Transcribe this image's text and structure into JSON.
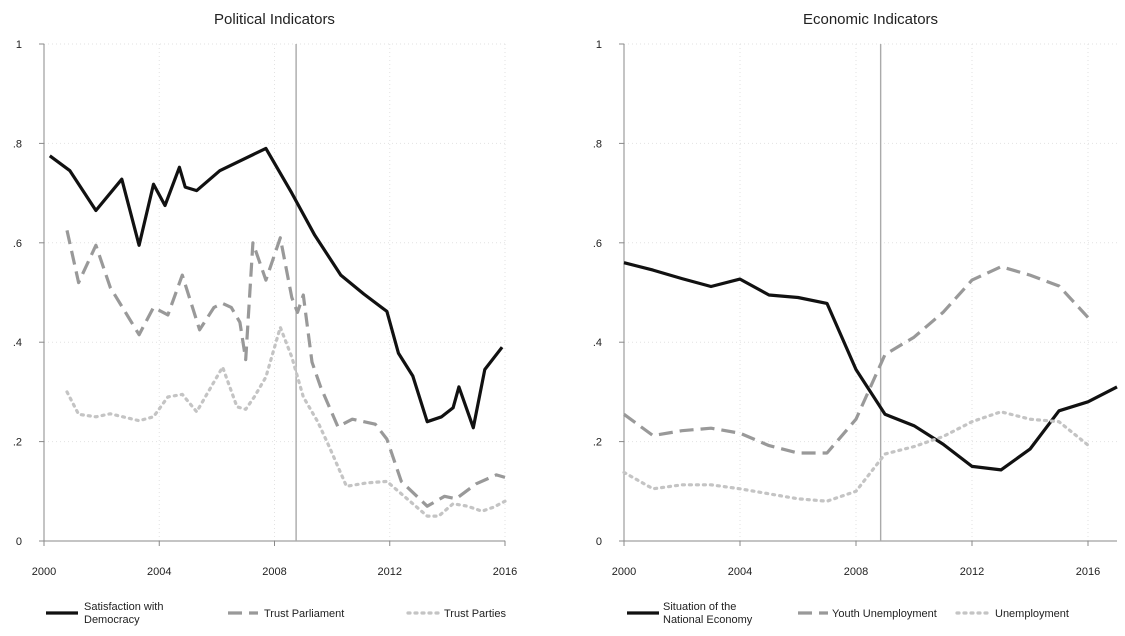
{
  "chart_data": [
    {
      "type": "line",
      "title": "Political Indicators",
      "xlabel": "",
      "ylabel": "",
      "xlim": [
        2000,
        2016
      ],
      "ylim": [
        0,
        1
      ],
      "xticks": [
        2000,
        2004,
        2008,
        2012,
        2016
      ],
      "xtick_labels": [
        "2000",
        "2004",
        "2008",
        "2012",
        "2016"
      ],
      "yticks": [
        0,
        0.2,
        0.4,
        0.6,
        0.8,
        1
      ],
      "ytick_labels": [
        "0",
        ".2",
        ".4",
        ".6",
        ".8",
        "1"
      ],
      "grid": true,
      "vline": 2008.75,
      "legend": "bottom",
      "series": [
        {
          "name": "Satisfaction with Democracy",
          "style": "solid",
          "color": "#111111",
          "points": [
            [
              2000.2,
              0.775
            ],
            [
              2000.9,
              0.745
            ],
            [
              2001.8,
              0.665
            ],
            [
              2002.7,
              0.728
            ],
            [
              2003.3,
              0.595
            ],
            [
              2003.8,
              0.718
            ],
            [
              2004.2,
              0.675
            ],
            [
              2004.7,
              0.752
            ],
            [
              2004.9,
              0.712
            ],
            [
              2005.3,
              0.705
            ],
            [
              2006.1,
              0.745
            ],
            [
              2007.7,
              0.79
            ],
            [
              2008.6,
              0.7
            ],
            [
              2009.4,
              0.615
            ],
            [
              2010.3,
              0.535
            ],
            [
              2011.1,
              0.497
            ],
            [
              2011.9,
              0.462
            ],
            [
              2012.3,
              0.378
            ],
            [
              2012.8,
              0.332
            ],
            [
              2013.3,
              0.24
            ],
            [
              2013.8,
              0.25
            ],
            [
              2014.2,
              0.268
            ],
            [
              2014.4,
              0.31
            ],
            [
              2014.9,
              0.228
            ],
            [
              2015.3,
              0.345
            ],
            [
              2015.9,
              0.39
            ]
          ]
        },
        {
          "name": "Trust Parliament",
          "style": "dash",
          "color": "#999999",
          "points": [
            [
              2000.8,
              0.625
            ],
            [
              2001.2,
              0.52
            ],
            [
              2001.8,
              0.595
            ],
            [
              2002.3,
              0.51
            ],
            [
              2003.3,
              0.415
            ],
            [
              2003.8,
              0.47
            ],
            [
              2004.3,
              0.455
            ],
            [
              2004.8,
              0.535
            ],
            [
              2005.4,
              0.425
            ],
            [
              2005.9,
              0.47
            ],
            [
              2006.2,
              0.478
            ],
            [
              2006.5,
              0.47
            ],
            [
              2006.8,
              0.44
            ],
            [
              2007.0,
              0.365
            ],
            [
              2007.25,
              0.6
            ],
            [
              2007.7,
              0.525
            ],
            [
              2008.2,
              0.61
            ],
            [
              2008.6,
              0.49
            ],
            [
              2008.8,
              0.46
            ],
            [
              2009.0,
              0.495
            ],
            [
              2009.3,
              0.36
            ],
            [
              2009.6,
              0.31
            ],
            [
              2010.2,
              0.23
            ],
            [
              2010.7,
              0.245
            ],
            [
              2011.5,
              0.235
            ],
            [
              2011.9,
              0.205
            ],
            [
              2012.4,
              0.12
            ],
            [
              2013.3,
              0.07
            ],
            [
              2013.9,
              0.09
            ],
            [
              2014.3,
              0.085
            ],
            [
              2015.0,
              0.115
            ],
            [
              2015.7,
              0.133
            ],
            [
              2016.0,
              0.128
            ]
          ]
        },
        {
          "name": "Trust Parties",
          "style": "dot",
          "color": "#c4c4c4",
          "points": [
            [
              2000.8,
              0.3
            ],
            [
              2001.2,
              0.255
            ],
            [
              2001.8,
              0.25
            ],
            [
              2002.3,
              0.256
            ],
            [
              2003.3,
              0.242
            ],
            [
              2003.8,
              0.25
            ],
            [
              2004.3,
              0.29
            ],
            [
              2004.8,
              0.295
            ],
            [
              2005.3,
              0.26
            ],
            [
              2005.7,
              0.3
            ],
            [
              2006.2,
              0.35
            ],
            [
              2006.7,
              0.27
            ],
            [
              2007.0,
              0.265
            ],
            [
              2007.3,
              0.29
            ],
            [
              2007.7,
              0.33
            ],
            [
              2008.2,
              0.43
            ],
            [
              2008.6,
              0.37
            ],
            [
              2009.0,
              0.29
            ],
            [
              2009.5,
              0.24
            ],
            [
              2009.9,
              0.19
            ],
            [
              2010.5,
              0.11
            ],
            [
              2011.2,
              0.117
            ],
            [
              2011.9,
              0.12
            ],
            [
              2012.5,
              0.09
            ],
            [
              2013.3,
              0.05
            ],
            [
              2013.7,
              0.05
            ],
            [
              2014.2,
              0.075
            ],
            [
              2014.7,
              0.07
            ],
            [
              2015.2,
              0.06
            ],
            [
              2015.6,
              0.068
            ],
            [
              2016.0,
              0.08
            ]
          ]
        }
      ]
    },
    {
      "type": "line",
      "title": "Economic Indicators",
      "xlabel": "",
      "ylabel": "",
      "xlim": [
        2000,
        2017
      ],
      "ylim": [
        0,
        1
      ],
      "xticks": [
        2000,
        2004,
        2008,
        2012,
        2016
      ],
      "xtick_labels": [
        "2000",
        "2004",
        "2008",
        "2012",
        "2016"
      ],
      "yticks": [
        0,
        0.2,
        0.4,
        0.6,
        0.8,
        1
      ],
      "ytick_labels": [
        "0",
        ".2",
        ".4",
        ".6",
        ".8",
        "1"
      ],
      "grid": true,
      "vline": 2008.85,
      "legend": "bottom",
      "series": [
        {
          "name": "Situation of the National Economy",
          "style": "solid",
          "color": "#111111",
          "points": [
            [
              2000,
              0.56
            ],
            [
              2001,
              0.545
            ],
            [
              2002,
              0.528
            ],
            [
              2003,
              0.512
            ],
            [
              2004,
              0.527
            ],
            [
              2005,
              0.495
            ],
            [
              2006,
              0.49
            ],
            [
              2007,
              0.478
            ],
            [
              2008,
              0.345
            ],
            [
              2009,
              0.255
            ],
            [
              2010,
              0.232
            ],
            [
              2011,
              0.195
            ],
            [
              2012,
              0.15
            ],
            [
              2013,
              0.143
            ],
            [
              2014,
              0.185
            ],
            [
              2015,
              0.262
            ],
            [
              2016,
              0.28
            ],
            [
              2017,
              0.31
            ]
          ]
        },
        {
          "name": "Youth Unemployment",
          "style": "dash",
          "color": "#999999",
          "points": [
            [
              2000,
              0.255
            ],
            [
              2001,
              0.212
            ],
            [
              2002,
              0.222
            ],
            [
              2003,
              0.227
            ],
            [
              2004,
              0.217
            ],
            [
              2005,
              0.192
            ],
            [
              2006,
              0.177
            ],
            [
              2007,
              0.177
            ],
            [
              2008,
              0.245
            ],
            [
              2009,
              0.375
            ],
            [
              2010,
              0.41
            ],
            [
              2011,
              0.46
            ],
            [
              2012,
              0.525
            ],
            [
              2013,
              0.552
            ],
            [
              2014,
              0.535
            ],
            [
              2015,
              0.513
            ],
            [
              2016,
              0.45
            ]
          ]
        },
        {
          "name": "Unemployment",
          "style": "dot",
          "color": "#c4c4c4",
          "points": [
            [
              2000,
              0.138
            ],
            [
              2001,
              0.105
            ],
            [
              2002,
              0.113
            ],
            [
              2003,
              0.113
            ],
            [
              2004,
              0.105
            ],
            [
              2005,
              0.095
            ],
            [
              2006,
              0.085
            ],
            [
              2007,
              0.08
            ],
            [
              2008,
              0.1
            ],
            [
              2009,
              0.175
            ],
            [
              2010,
              0.19
            ],
            [
              2011,
              0.21
            ],
            [
              2012,
              0.24
            ],
            [
              2013,
              0.26
            ],
            [
              2014,
              0.245
            ],
            [
              2015,
              0.24
            ],
            [
              2016,
              0.193
            ]
          ]
        }
      ]
    }
  ]
}
